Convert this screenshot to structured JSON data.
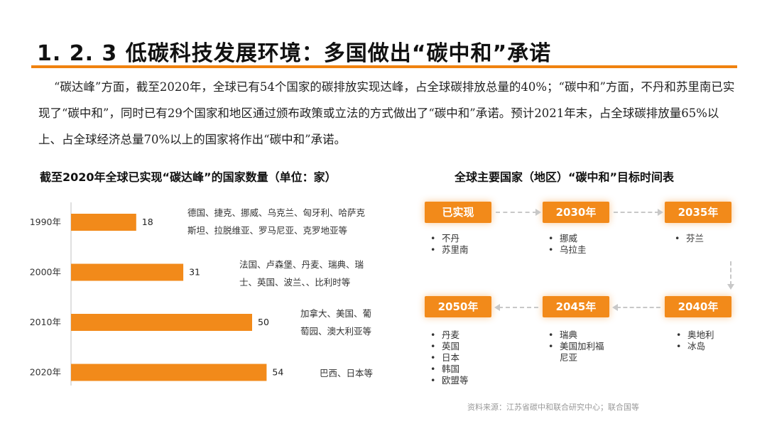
{
  "header": {
    "title": "1. 2. 3  低碳科技发展环境：多国做出“碳中和”承诺"
  },
  "intro_text": "“碳达峰”方面，截至2020年，全球已有54个国家的碳排放实现达峰，占全球碳排放总量的40%；“碳中和”方面，不丹和苏里南已实现了“碳中和”，同时已有29个国家和地区通过颁布政策或立法的方式做出了“碳中和”承诺。预计2021年末，占全球碳排放量65%以上、占全球经济总量70%以上的国家将作出“碳中和”承诺。",
  "chart_data": {
    "type": "bar",
    "orientation": "horizontal",
    "title": "截至2020年全球已实现“碳达峰”的国家数量（单位：家）",
    "categories": [
      "1990年",
      "2000年",
      "2010年",
      "2020年"
    ],
    "values": [
      18,
      31,
      50,
      54
    ],
    "bar_color": "#f28a1a",
    "annotations": [
      "德国、捷克、挪威、乌克兰、匈牙利、哈萨克斯坦、拉脱维亚、罗马尼亚、克罗地亚等",
      "法国、卢森堡、丹麦、瑞典、瑞士、英国、波兰、、比利时等",
      "加拿大、美国、葡萄园、澳大利亚等",
      "巴西、日本等"
    ]
  },
  "timeline": {
    "title": "全球主要国家（地区）“碳中和”目标时间表",
    "accent": "#f28a1a",
    "stages": [
      {
        "label": "已实现",
        "countries": [
          "不丹",
          "苏里南"
        ]
      },
      {
        "label": "2030年",
        "countries": [
          "挪威",
          "乌拉圭"
        ]
      },
      {
        "label": "2035年",
        "countries": [
          "芬兰"
        ]
      },
      {
        "label": "2040年",
        "countries": [
          "奥地利",
          "冰岛"
        ]
      },
      {
        "label": "2045年",
        "countries": [
          "瑞典",
          "美国加利福尼亚"
        ]
      },
      {
        "label": "2050年",
        "countries": [
          "丹麦",
          "英国",
          "日本",
          "韩国",
          "欧盟等"
        ]
      }
    ]
  },
  "source": "资料来源：江苏省碳中和联合研究中心；联合国等"
}
